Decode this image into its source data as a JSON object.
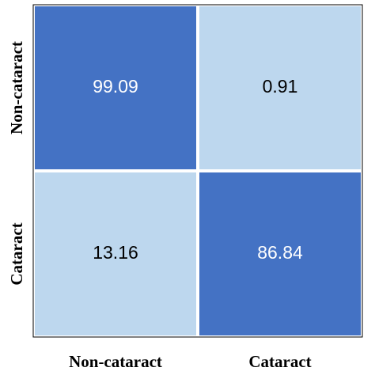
{
  "chart_data": {
    "type": "heatmap",
    "x_categories": [
      "Non-cataract",
      "Cataract"
    ],
    "y_categories": [
      "Non-cataract",
      "Cataract"
    ],
    "values": [
      [
        99.09,
        0.91
      ],
      [
        13.16,
        86.84
      ]
    ],
    "colors": [
      [
        "#4472c4",
        "#bdd7ee"
      ],
      [
        "#bdd7ee",
        "#4472c4"
      ]
    ]
  }
}
